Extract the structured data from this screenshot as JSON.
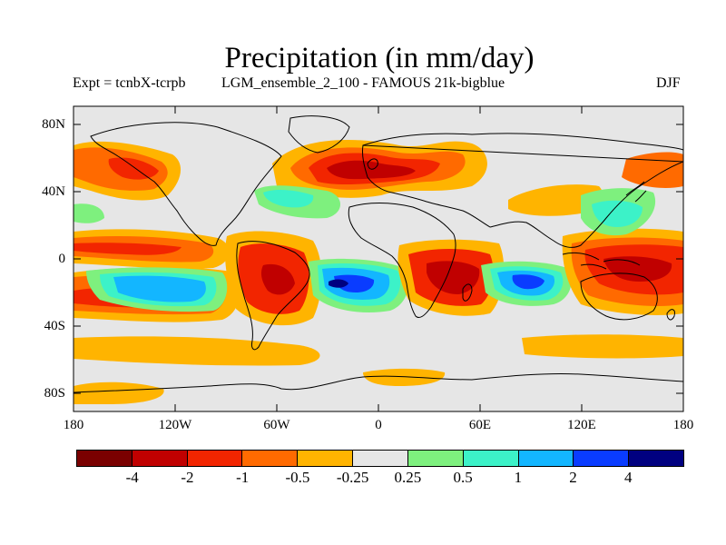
{
  "title": "Precipitation (in mm/day)",
  "experiment": "Expt = tcnbX-tcrpb",
  "run": "LGM_ensemble_2_100 - FAMOUS 21k-bigblue",
  "season": "DJF",
  "lat_ticks": [
    "80N",
    "40N",
    "0",
    "40S",
    "80S"
  ],
  "lon_ticks": [
    "180",
    "120W",
    "60W",
    "0",
    "60E",
    "120E",
    "180"
  ],
  "colorbar": {
    "colors": [
      "#7a0000",
      "#c00000",
      "#f22500",
      "#ff6a00",
      "#ffb400",
      "#e6e6e6",
      "#7ef07e",
      "#3cf2c8",
      "#13b6ff",
      "#0a3cff",
      "#000080"
    ],
    "labels": [
      "-4",
      "-2",
      "-1",
      "-0.5",
      "-0.25",
      "0.25",
      "0.5",
      "1",
      "2",
      "4"
    ]
  },
  "colors": {
    "background_field": "#e6e6e6",
    "coastline": "#000000"
  }
}
